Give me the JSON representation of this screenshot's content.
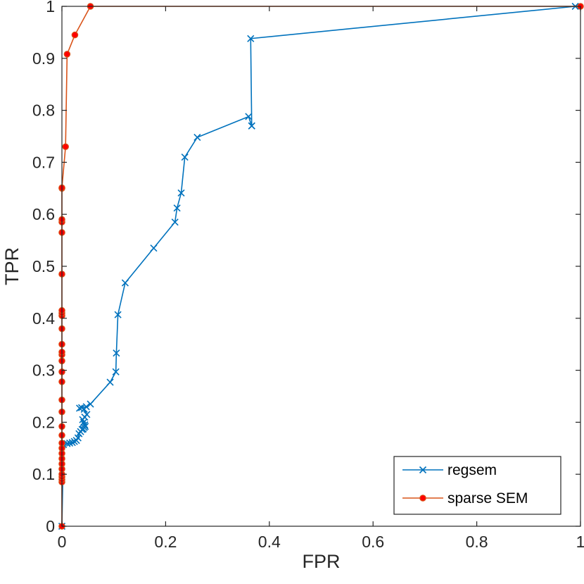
{
  "chart_data": {
    "type": "line",
    "title": "",
    "xlabel": "FPR",
    "ylabel": "TPR",
    "xlim": [
      0,
      1
    ],
    "ylim": [
      0,
      1
    ],
    "xticks": [
      "0",
      "0.2",
      "0.4",
      "0.6",
      "0.8",
      "1"
    ],
    "yticks": [
      "0",
      "0.1",
      "0.2",
      "0.3",
      "0.4",
      "0.5",
      "0.6",
      "0.7",
      "0.8",
      "0.9",
      "1"
    ],
    "grid": false,
    "legend_position": "bottom-right",
    "series": [
      {
        "name": "regsem",
        "color": "#0072BD",
        "marker": "x",
        "x": [
          0,
          0.003,
          0.01,
          0.015,
          0.02,
          0.024,
          0.028,
          0.031,
          0.033,
          0.036,
          0.039,
          0.041,
          0.043,
          0.045,
          0.044,
          0.042,
          0.04,
          0.044,
          0.048,
          0.043,
          0.038,
          0.034,
          0.047,
          0.055,
          0.093,
          0.104,
          0.105,
          0.108,
          0.122,
          0.177,
          0.218,
          0.222,
          0.23,
          0.237,
          0.261,
          0.36,
          0.366,
          0.366,
          0.364,
          0.99
        ],
        "y": [
          0,
          0.157,
          0.159,
          0.16,
          0.161,
          0.163,
          0.165,
          0.17,
          0.178,
          0.182,
          0.186,
          0.187,
          0.19,
          0.192,
          0.195,
          0.2,
          0.205,
          0.21,
          0.215,
          0.225,
          0.228,
          0.227,
          0.23,
          0.235,
          0.277,
          0.297,
          0.333,
          0.407,
          0.468,
          0.535,
          0.585,
          0.612,
          0.641,
          0.71,
          0.748,
          0.788,
          0.77,
          0.77,
          0.938,
          1.0
        ]
      },
      {
        "name": "sparse SEM",
        "color": "#D95319",
        "marker": "dot",
        "x": [
          0,
          0,
          0,
          0,
          0,
          0,
          0,
          0,
          0,
          0,
          0,
          0,
          0,
          0,
          0,
          0,
          0,
          0,
          0,
          0,
          0,
          0,
          0,
          0,
          0,
          0,
          0,
          0,
          0,
          0,
          0,
          0.007,
          0.01,
          0.025,
          0.055,
          1.0
        ],
        "y": [
          0,
          0.085,
          0.09,
          0.095,
          0.1,
          0.11,
          0.12,
          0.13,
          0.14,
          0.15,
          0.16,
          0.175,
          0.192,
          0.22,
          0.243,
          0.278,
          0.297,
          0.318,
          0.33,
          0.335,
          0.35,
          0.38,
          0.405,
          0.41,
          0.415,
          0.485,
          0.565,
          0.585,
          0.59,
          0.65,
          0.651,
          0.73,
          0.908,
          0.945,
          1.0,
          1.0
        ]
      }
    ]
  }
}
